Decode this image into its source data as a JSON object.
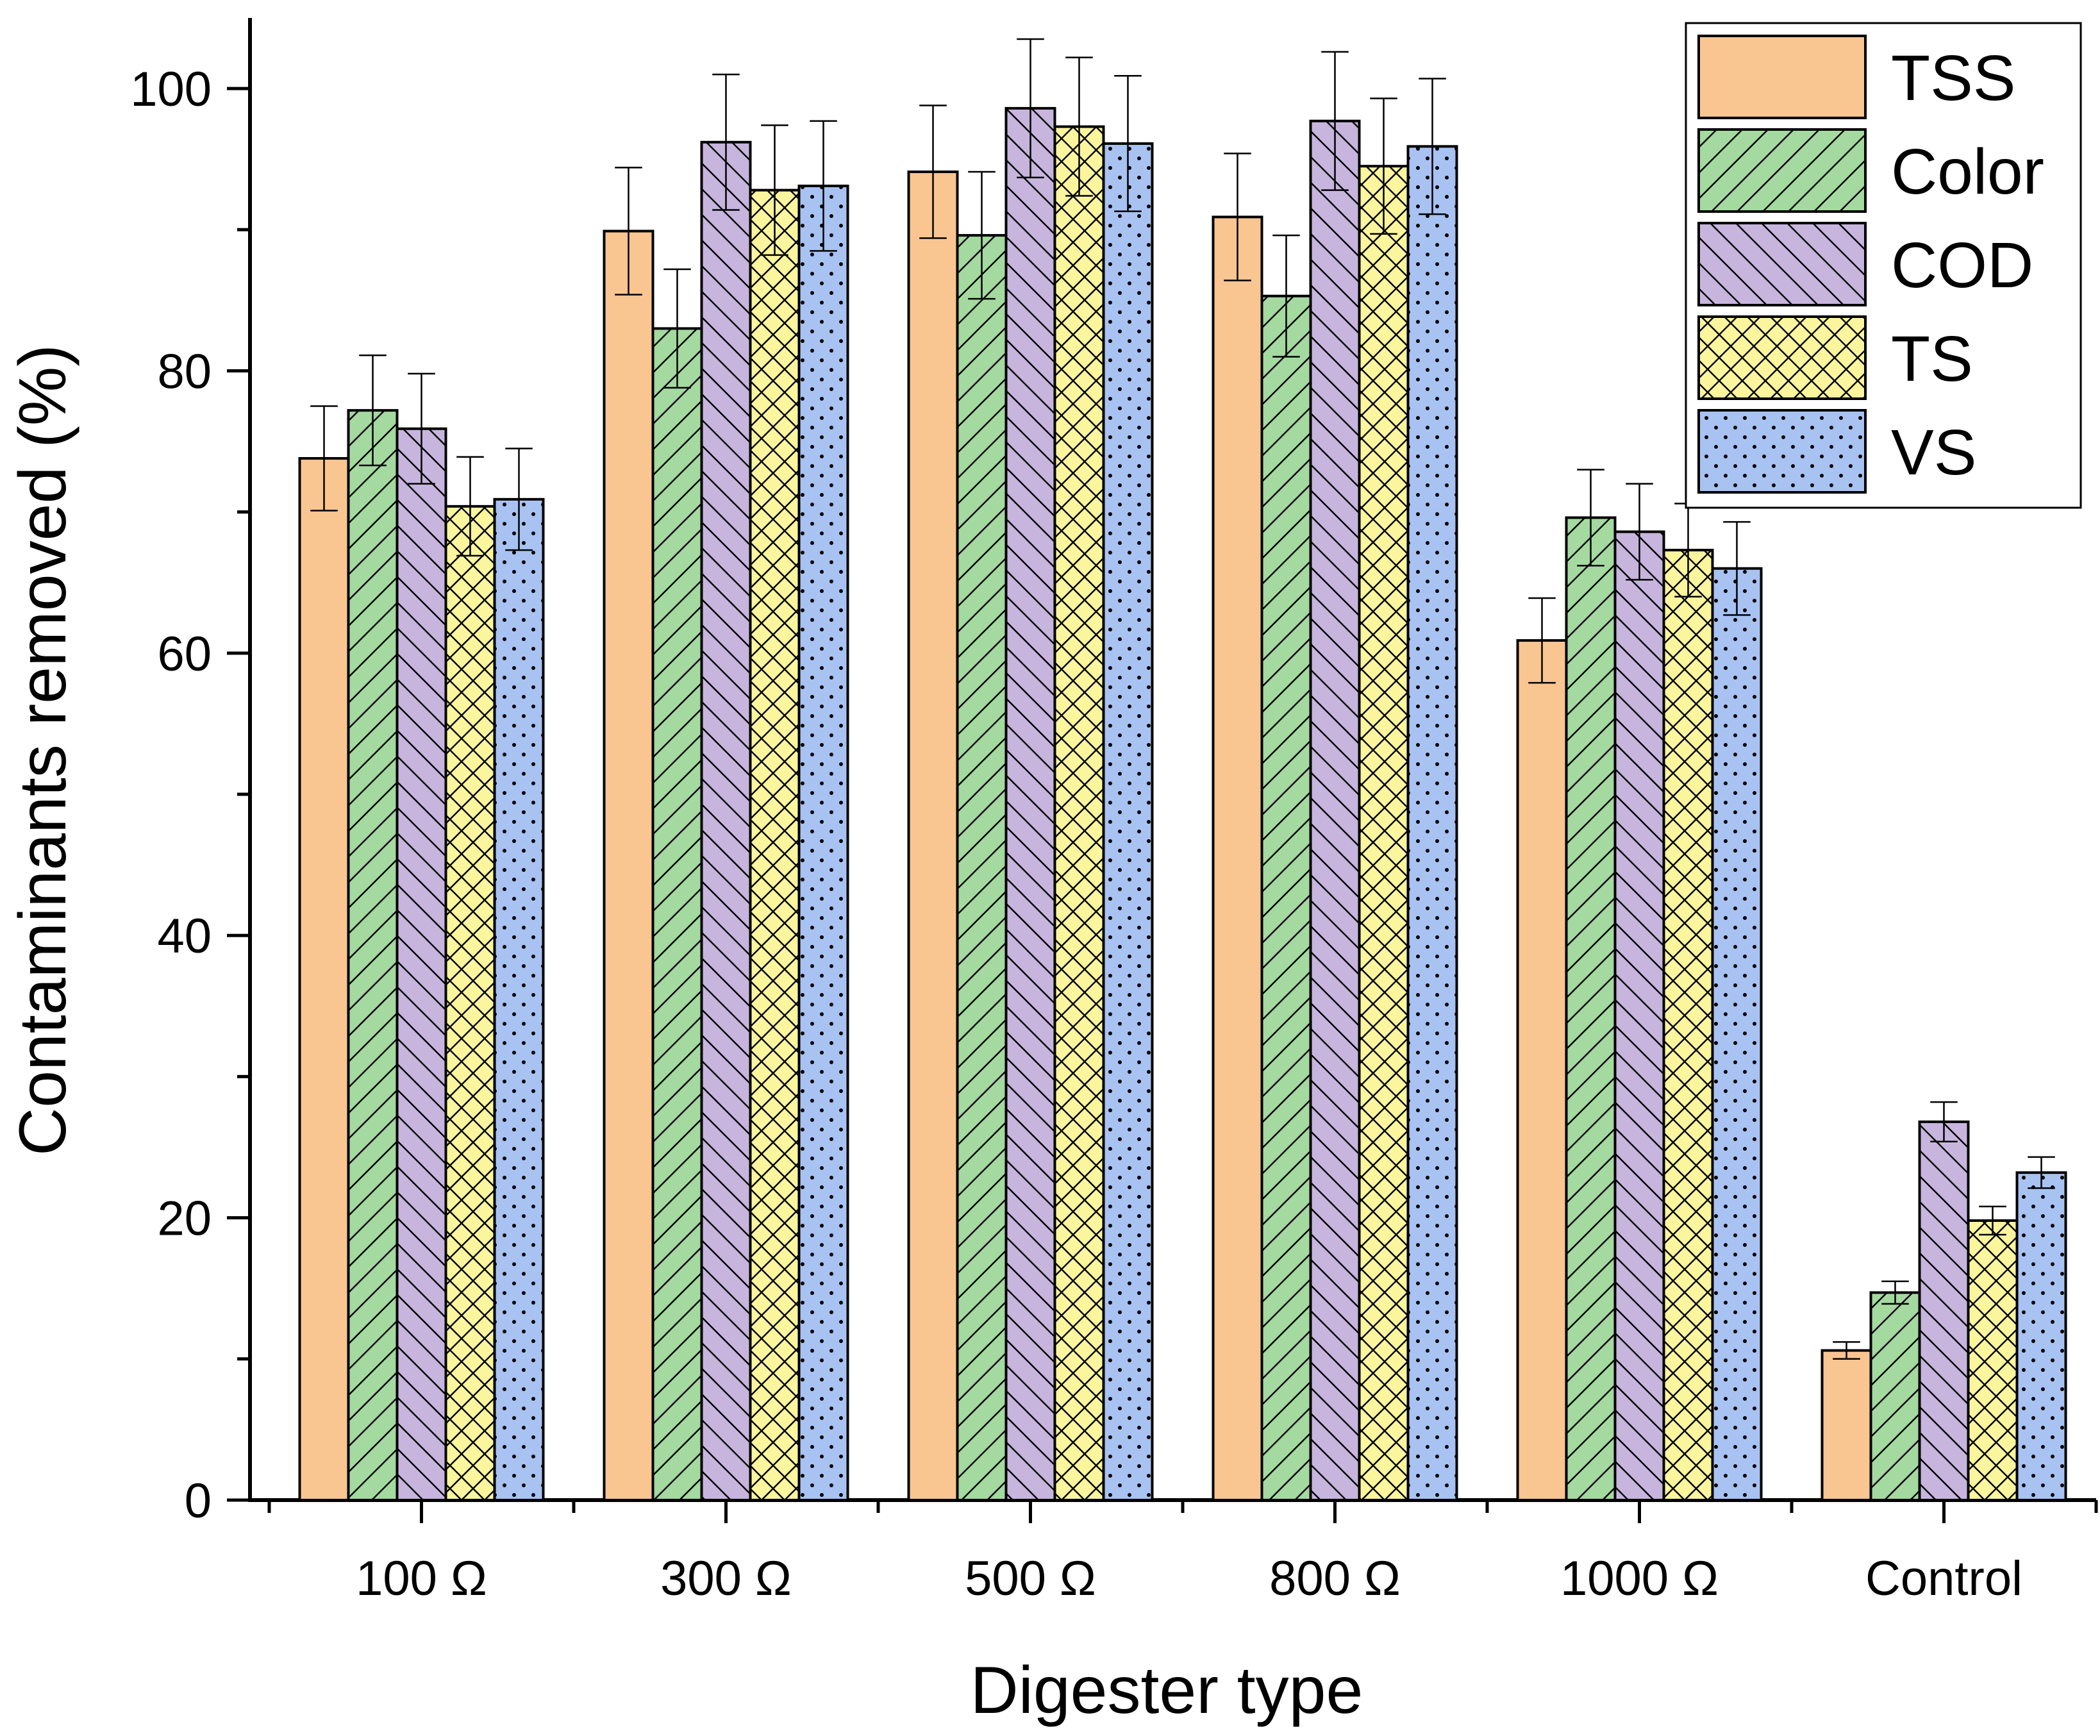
{
  "chart_data": {
    "type": "bar",
    "title": "",
    "xlabel": "Digester type",
    "ylabel": "Contaminants removed (%)",
    "ylim": [
      0,
      105
    ],
    "yticks": [
      0,
      20,
      40,
      60,
      80,
      100
    ],
    "tick_labels": [
      "0",
      "20",
      "40",
      "60",
      "80",
      "100"
    ],
    "categories": [
      "100 Ω",
      "300 Ω",
      "500  Ω",
      "800  Ω",
      "1000  Ω",
      "Control"
    ],
    "legend_position": "top-right",
    "grid": false,
    "series": [
      {
        "name": "TSS",
        "color": "#f9c591",
        "pattern": "none",
        "values": [
          73.8,
          89.9,
          94.1,
          90.9,
          60.9,
          10.6
        ],
        "errors": [
          3.7,
          4.5,
          4.7,
          4.5,
          3.0,
          0.6
        ]
      },
      {
        "name": "Color",
        "color": "#a4d9a0",
        "pattern": "fwd",
        "values": [
          77.2,
          83.0,
          89.6,
          85.3,
          69.6,
          14.7
        ],
        "errors": [
          3.9,
          4.2,
          4.5,
          4.3,
          3.4,
          0.8
        ]
      },
      {
        "name": "COD",
        "color": "#c7b5de",
        "pattern": "back",
        "values": [
          75.9,
          96.2,
          98.6,
          97.7,
          68.6,
          26.8
        ],
        "errors": [
          3.9,
          4.8,
          4.9,
          4.9,
          3.4,
          1.4
        ]
      },
      {
        "name": "TS",
        "color": "#fbf69e",
        "pattern": "cross",
        "values": [
          70.4,
          92.8,
          97.3,
          94.5,
          67.3,
          19.8
        ],
        "errors": [
          3.5,
          4.6,
          4.9,
          4.8,
          3.3,
          1.0
        ]
      },
      {
        "name": "VS",
        "color": "#a8c2f2",
        "pattern": "dots",
        "values": [
          70.9,
          93.1,
          96.1,
          95.9,
          66.0,
          23.2
        ],
        "errors": [
          3.6,
          4.6,
          4.8,
          4.8,
          3.3,
          1.1
        ]
      }
    ]
  }
}
